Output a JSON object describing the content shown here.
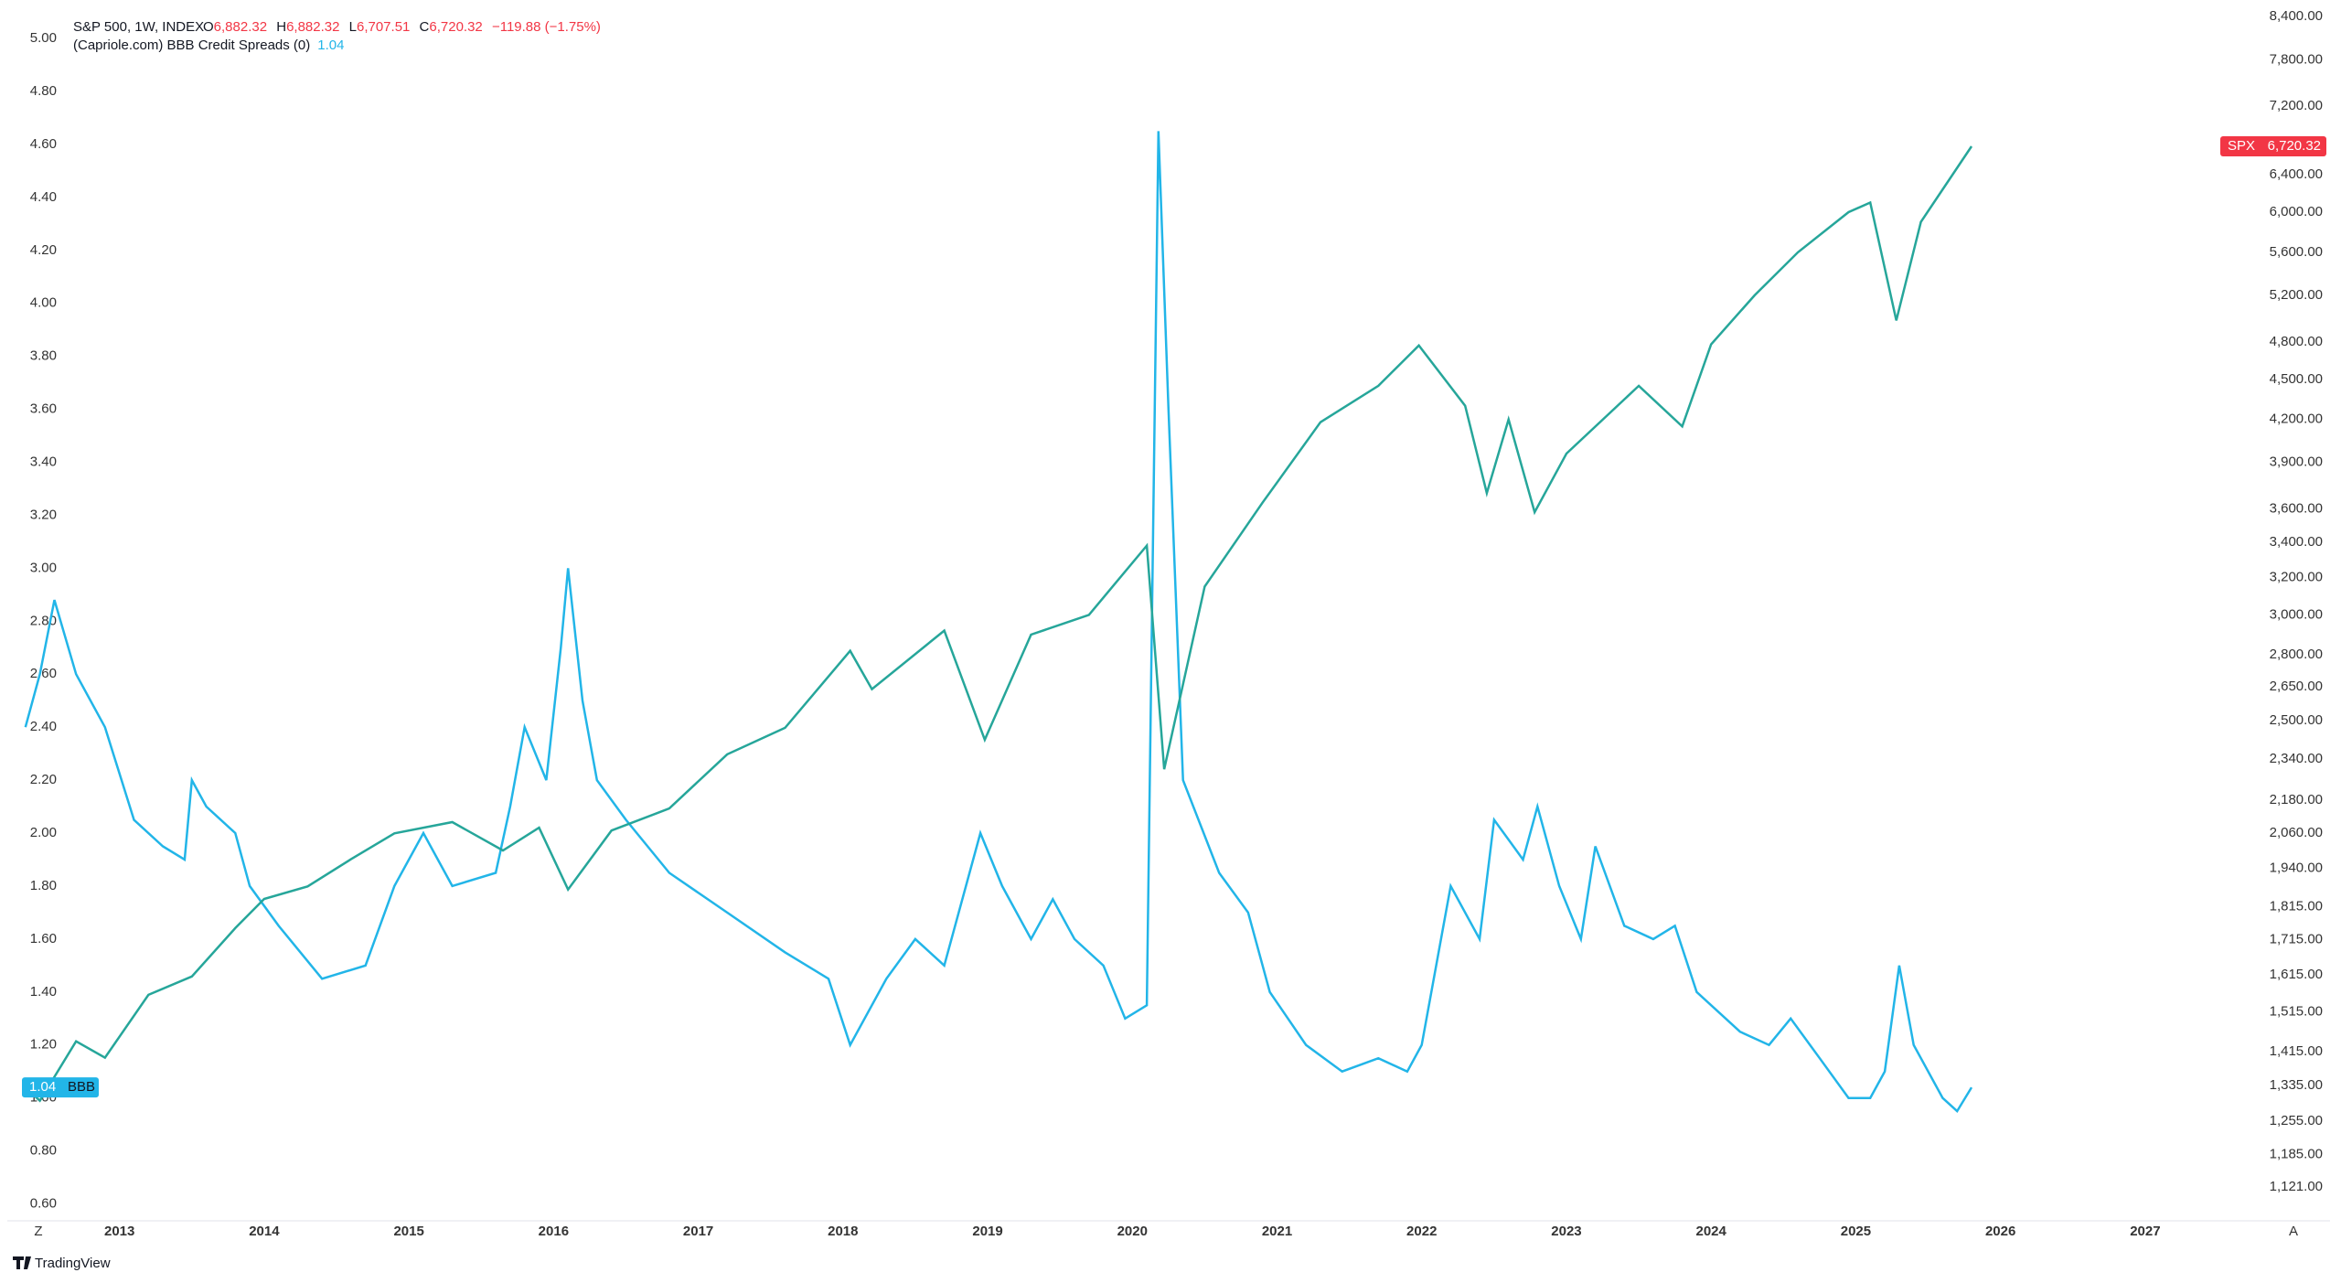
{
  "chart_data": {
    "type": "line",
    "legend_values": {
      "bbb_last": "1.04",
      "open_label": "O",
      "open": "6,882.32",
      "high_label": "H",
      "high": "6,882.32",
      "low_label": "L",
      "low": "6,707.51",
      "close_label": "C",
      "close": "6,720.32",
      "change": "−119.88 (−1.75%)"
    },
    "xlim": [
      2012.25,
      2027.5
    ],
    "xticks": [
      2013,
      2014,
      2015,
      2016,
      2017,
      2018,
      2019,
      2020,
      2021,
      2022,
      2023,
      2024,
      2025,
      2026,
      2027
    ],
    "ylim": [
      0.55,
      5.09
    ],
    "yticks": [
      {
        "value": 0.6,
        "label": "0.60"
      },
      {
        "value": 0.8,
        "label": "0.80"
      },
      {
        "value": 1,
        "label": "1.00"
      },
      {
        "value": 1.2,
        "label": "1.20"
      },
      {
        "value": 1.4,
        "label": "1.40"
      },
      {
        "value": 1.6,
        "label": "1.60"
      },
      {
        "value": 1.8,
        "label": "1.80"
      },
      {
        "value": 2,
        "label": "2.00"
      },
      {
        "value": 2.2,
        "label": "2.20"
      },
      {
        "value": 2.4,
        "label": "2.40"
      },
      {
        "value": 2.6,
        "label": "2.60"
      },
      {
        "value": 2.8,
        "label": "2.80"
      },
      {
        "value": 3,
        "label": "3.00"
      },
      {
        "value": 3.2,
        "label": "3.20"
      },
      {
        "value": 3.4,
        "label": "3.40"
      },
      {
        "value": 3.6,
        "label": "3.60"
      },
      {
        "value": 3.8,
        "label": "3.80"
      },
      {
        "value": 4,
        "label": "4.00"
      },
      {
        "value": 4.2,
        "label": "4.20"
      },
      {
        "value": 4.4,
        "label": "4.40"
      },
      {
        "value": 4.6,
        "label": "4.60"
      },
      {
        "value": 4.8,
        "label": "4.80"
      },
      {
        "value": 5,
        "label": "5.00"
      }
    ],
    "y2lim": [
      1064,
      8430
    ],
    "y2log": true,
    "y2ticks": [
      {
        "value": 1121,
        "label": "1,121.00"
      },
      {
        "value": 1185,
        "label": "1,185.00"
      },
      {
        "value": 1255,
        "label": "1,255.00"
      },
      {
        "value": 1335,
        "label": "1,335.00"
      },
      {
        "value": 1415,
        "label": "1,415.00"
      },
      {
        "value": 1515,
        "label": "1,515.00"
      },
      {
        "value": 1615,
        "label": "1,615.00"
      },
      {
        "value": 1715,
        "label": "1,715.00"
      },
      {
        "value": 1815,
        "label": "1,815.00"
      },
      {
        "value": 1940,
        "label": "1,940.00"
      },
      {
        "value": 2060,
        "label": "2,060.00"
      },
      {
        "value": 2180,
        "label": "2,180.00"
      },
      {
        "value": 2340,
        "label": "2,340.00"
      },
      {
        "value": 2500,
        "label": "2,500.00"
      },
      {
        "value": 2650,
        "label": "2,650.00"
      },
      {
        "value": 2800,
        "label": "2,800.00"
      },
      {
        "value": 3000,
        "label": "3,000.00"
      },
      {
        "value": 3200,
        "label": "3,200.00"
      },
      {
        "value": 3400,
        "label": "3,400.00"
      },
      {
        "value": 3600,
        "label": "3,600.00"
      },
      {
        "value": 3900,
        "label": "3,900.00"
      },
      {
        "value": 4200,
        "label": "4,200.00"
      },
      {
        "value": 4500,
        "label": "4,500.00"
      },
      {
        "value": 4800,
        "label": "4,800.00"
      },
      {
        "value": 5200,
        "label": "5,200.00"
      },
      {
        "value": 5600,
        "label": "5,600.00"
      },
      {
        "value": 6000,
        "label": "6,000.00"
      },
      {
        "value": 6400,
        "label": "6,400.00"
      },
      {
        "value": 7200,
        "label": "7,200.00"
      },
      {
        "value": 7800,
        "label": "7,800.00"
      },
      {
        "value": 8400,
        "label": "8,400.00"
      }
    ],
    "series": [
      {
        "name": "(Capriole.com) BBB Credit Spreads (0)",
        "tag": "BBB",
        "tag_value": {
          "value": 1.04,
          "label": "1.04"
        },
        "color": "#22b5e8",
        "axis": "y",
        "x": [
          2012.35,
          2012.45,
          2012.55,
          2012.7,
          2012.9,
          2013.1,
          2013.3,
          2013.45,
          2013.5,
          2013.6,
          2013.8,
          2013.9,
          2014.1,
          2014.4,
          2014.7,
          2014.9,
          2015.1,
          2015.3,
          2015.6,
          2015.7,
          2015.8,
          2015.95,
          2016.05,
          2016.1,
          2016.2,
          2016.3,
          2016.5,
          2016.8,
          2017.2,
          2017.6,
          2017.9,
          2018.05,
          2018.3,
          2018.5,
          2018.7,
          2018.95,
          2019.1,
          2019.3,
          2019.45,
          2019.6,
          2019.8,
          2019.95,
          2020.1,
          2020.18,
          2020.25,
          2020.35,
          2020.6,
          2020.8,
          2020.95,
          2021.2,
          2021.45,
          2021.7,
          2021.9,
          2022.0,
          2022.2,
          2022.4,
          2022.5,
          2022.7,
          2022.8,
          2022.95,
          2023.1,
          2023.2,
          2023.4,
          2023.6,
          2023.75,
          2023.9,
          2024.2,
          2024.4,
          2024.55,
          2024.75,
          2024.95,
          2025.1,
          2025.2,
          2025.3,
          2025.4,
          2025.6,
          2025.7,
          2025.8
        ],
        "values": [
          2.4,
          2.6,
          2.88,
          2.6,
          2.4,
          2.05,
          1.95,
          1.9,
          2.2,
          2.1,
          2.0,
          1.8,
          1.65,
          1.45,
          1.5,
          1.8,
          2.0,
          1.8,
          1.85,
          2.1,
          2.4,
          2.2,
          2.7,
          3.0,
          2.5,
          2.2,
          2.05,
          1.85,
          1.7,
          1.55,
          1.45,
          1.2,
          1.45,
          1.6,
          1.5,
          2.0,
          1.8,
          1.6,
          1.75,
          1.6,
          1.5,
          1.3,
          1.35,
          4.65,
          3.6,
          2.2,
          1.85,
          1.7,
          1.4,
          1.2,
          1.1,
          1.15,
          1.1,
          1.2,
          1.8,
          1.6,
          2.05,
          1.9,
          2.1,
          1.8,
          1.6,
          1.95,
          1.65,
          1.6,
          1.65,
          1.4,
          1.25,
          1.2,
          1.3,
          1.15,
          1.0,
          1.0,
          1.1,
          1.5,
          1.2,
          1.0,
          0.95,
          1.04
        ]
      },
      {
        "name": "S&P 500, 1W, INDEX",
        "tag": "SPX",
        "tag_value": {
          "value": 6720.32,
          "label": "6,720.32"
        },
        "color": "#26a69a",
        "axis": "y2",
        "x": [
          2012.35,
          2012.45,
          2012.7,
          2012.9,
          2013.2,
          2013.5,
          2013.8,
          2014.0,
          2014.3,
          2014.6,
          2014.9,
          2015.3,
          2015.65,
          2015.9,
          2016.1,
          2016.4,
          2016.8,
          2017.2,
          2017.6,
          2018.05,
          2018.2,
          2018.7,
          2018.98,
          2019.3,
          2019.7,
          2020.1,
          2020.22,
          2020.5,
          2020.9,
          2021.3,
          2021.7,
          2021.98,
          2022.3,
          2022.45,
          2022.6,
          2022.78,
          2023.0,
          2023.5,
          2023.8,
          2024.0,
          2024.3,
          2024.6,
          2024.95,
          2025.1,
          2025.28,
          2025.45,
          2025.8
        ],
        "values": [
          1330,
          1300,
          1440,
          1400,
          1560,
          1610,
          1750,
          1840,
          1880,
          1970,
          2060,
          2100,
          2000,
          2080,
          1870,
          2070,
          2150,
          2360,
          2470,
          2820,
          2640,
          2920,
          2420,
          2900,
          3000,
          3380,
          2300,
          3150,
          3640,
          4180,
          4450,
          4770,
          4300,
          3700,
          4200,
          3580,
          3960,
          4450,
          4150,
          4780,
          5200,
          5600,
          6000,
          6100,
          4980,
          5900,
          6720
        ]
      }
    ],
    "footer": "TradingView",
    "button_left": "Z",
    "button_right": "A"
  }
}
